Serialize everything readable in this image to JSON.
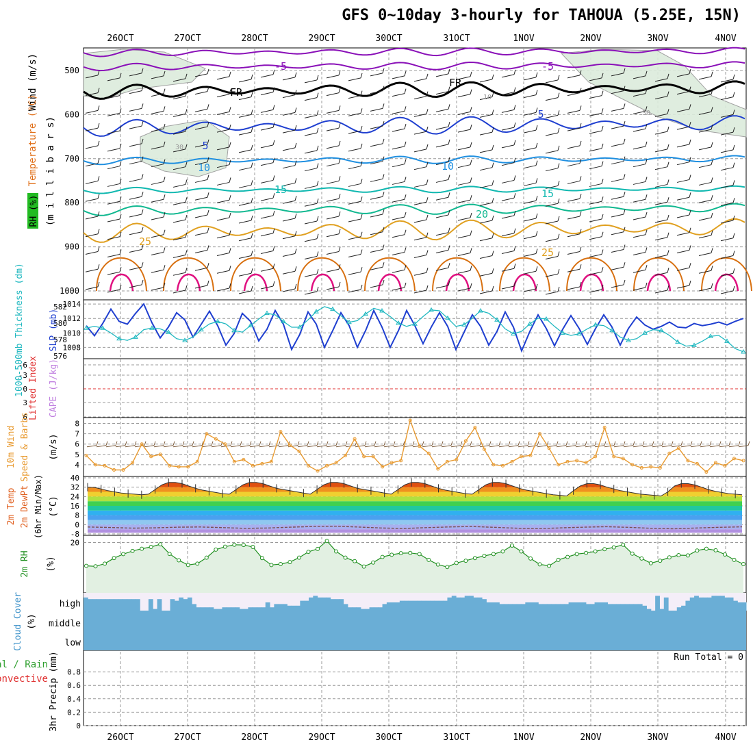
{
  "title": "GFS 0~10day 3-hourly for TAHOUA (5.25E, 15N)",
  "colors": {
    "grid": "#999999",
    "temp_purple": "#8a10b8",
    "temp_black": "#000000",
    "temp_blue": "#1f3fd0",
    "temp_lightblue": "#1f8fe0",
    "temp_cyan": "#10b8b0",
    "temp_green": "#10b890",
    "temp_gold": "#e0a020",
    "temp_orange": "#d87010",
    "temp_magenta": "#e01080",
    "rh_fill": "#dcecdc",
    "slp": "#1f3fd0",
    "thickness": "#20b8c0",
    "wind10m": "#e89a30",
    "rh2m_line": "#209020",
    "rh2m_fill": "#e2f0e2",
    "cloud": "#6aaed6",
    "cloud_bg": "#f4eef8"
  },
  "chart_data": [
    {
      "type": "line",
      "panel": "upper-air",
      "ylabel_rh": "RH (%)",
      "ylabel_temp": "Temperature (°C)",
      "ylabel_wind": "Wind (m/s)",
      "ylabel_axis": "(m i l l i b a r s)",
      "y_ticks": [
        500,
        600,
        700,
        800,
        900,
        1000
      ],
      "y_reversed": true,
      "x_ticks": [
        "26OCT",
        "27OCT",
        "28OCT",
        "29OCT",
        "30OCT",
        "31OCT",
        "1NOV",
        "2NOV",
        "3NOV",
        "4NOV"
      ],
      "contour_labels": [
        {
          "text": "-5",
          "color": "temp_purple"
        },
        {
          "text": "-5",
          "color": "temp_purple"
        },
        {
          "text": "FR",
          "color": "temp_black"
        },
        {
          "text": "FR",
          "color": "temp_black"
        },
        {
          "text": "5",
          "color": "temp_blue"
        },
        {
          "text": "5",
          "color": "temp_blue"
        },
        {
          "text": "10",
          "color": "temp_lightblue"
        },
        {
          "text": "10",
          "color": "temp_lightblue"
        },
        {
          "text": "15",
          "color": "temp_cyan"
        },
        {
          "text": "15",
          "color": "temp_cyan"
        },
        {
          "text": "20",
          "color": "temp_green"
        },
        {
          "text": "25",
          "color": "temp_gold"
        },
        {
          "text": "25",
          "color": "temp_gold"
        },
        {
          "text": "30",
          "color": "grid"
        },
        {
          "text": "30",
          "color": "grid"
        },
        {
          "text": "10",
          "color": "grid"
        }
      ],
      "isotherms": [
        {
          "color": "temp_purple",
          "level_mb": 492,
          "amp": 6
        },
        {
          "color": "temp_purple",
          "level_mb": 460,
          "amp": 6
        },
        {
          "color": "temp_black",
          "level_mb": 548,
          "amp": 12
        },
        {
          "color": "temp_blue",
          "level_mb": 630,
          "amp": 14
        },
        {
          "color": "temp_lightblue",
          "level_mb": 705,
          "amp": 6
        },
        {
          "color": "temp_cyan",
          "level_mb": 772,
          "amp": 5
        },
        {
          "color": "temp_green",
          "level_mb": 818,
          "amp": 8
        },
        {
          "color": "temp_gold",
          "level_mb": 868,
          "amp": 16
        }
      ]
    },
    {
      "type": "line",
      "panel": "slp-thickness",
      "ylabel_left": "1000-500mb Thickness (dm)",
      "ylabel_right": "SLP (mb)",
      "y_ticks_left": [
        576,
        578,
        580,
        582
      ],
      "y_ticks_right": [
        1008,
        1010,
        1012,
        1014
      ],
      "ylim_left": [
        576,
        582.5
      ],
      "ylim_right": [
        1006.8,
        1014.2
      ],
      "series": [
        {
          "name": "SLP (mb)",
          "color": "slp",
          "values": [
            1011.0,
            1009.6,
            1011.3,
            1013.3,
            1011.6,
            1011.2,
            1012.7,
            1014.0,
            1011.4,
            1009.3,
            1010.8,
            1012.8,
            1011.8,
            1009.4,
            1011.2,
            1013.0,
            1011.0,
            1008.3,
            1009.9,
            1012.7,
            1011.6,
            1008.9,
            1010.5,
            1013.1,
            1011.2,
            1007.7,
            1009.8,
            1012.9,
            1011.2,
            1008.0,
            1010.3,
            1012.8,
            1011.0,
            1008.0,
            1010.3,
            1013.1,
            1010.8,
            1008.0,
            1010.3,
            1013.1,
            1011.0,
            1008.5,
            1010.8,
            1012.8,
            1010.9,
            1007.7,
            1010.1,
            1012.5,
            1010.9,
            1008.3,
            1010.2,
            1012.9,
            1010.8,
            1007.5,
            1010.2,
            1012.5,
            1010.6,
            1008.2,
            1010.5,
            1012.4,
            1010.6,
            1008.4,
            1010.6,
            1012.5,
            1010.8,
            1008.3,
            1010.6,
            1012.2,
            1011.1,
            1010.5,
            1010.9,
            1011.5,
            1010.8,
            1010.7,
            1011.3,
            1011.0,
            1011.2,
            1011.5,
            1011.1,
            1011.6,
            1012.0
          ]
        },
        {
          "name": "Thickness (dm)",
          "color": "thickness",
          "values": [
            579.4,
            579.6,
            579.4,
            578.8,
            578.1,
            577.9,
            578.3,
            579.2,
            579.4,
            579.3,
            578.9,
            578.1,
            577.9,
            578.3,
            579.2,
            579.9,
            580.2,
            579.9,
            579.1,
            578.9,
            579.7,
            580.5,
            581.2,
            581.0,
            580.2,
            579.5,
            579.5,
            580.4,
            581.4,
            582.0,
            581.7,
            580.9,
            580.1,
            580.3,
            581.1,
            581.8,
            581.5,
            580.8,
            580.0,
            579.6,
            579.9,
            580.8,
            581.6,
            581.5,
            580.6,
            579.6,
            579.8,
            580.6,
            581.5,
            581.2,
            580.4,
            579.3,
            578.7,
            579.0,
            579.9,
            580.6,
            580.5,
            579.6,
            578.8,
            578.5,
            578.7,
            579.3,
            579.8,
            579.7,
            579.1,
            578.3,
            577.9,
            578.1,
            578.8,
            579.2,
            579.1,
            578.5,
            577.7,
            577.2,
            577.3,
            577.8,
            578.4,
            578.5,
            577.8,
            576.9,
            576.5
          ]
        }
      ]
    },
    {
      "type": "line",
      "panel": "cape-li",
      "ylabel_left": "CAPE (J/kg)",
      "ylabel_right": "Lifted Index",
      "y_ticks": [
        "-6",
        "-3",
        "0",
        "3",
        "6"
      ],
      "reference_line": 0
    },
    {
      "type": "line",
      "panel": "wind10m",
      "ylabel_left": "10m Wind",
      "ylabel_mid": "Speed & Barbs",
      "ylabel_units": "(m/s)",
      "y_ticks": [
        4,
        5,
        6,
        7,
        8
      ],
      "ylim": [
        3,
        8.3
      ],
      "series": [
        {
          "name": "10m Wind Speed",
          "color": "wind10m",
          "values": [
            4.9,
            4.0,
            3.9,
            3.5,
            3.5,
            4.2,
            6.0,
            4.8,
            5.0,
            3.9,
            3.8,
            3.8,
            4.3,
            7.0,
            6.5,
            6.0,
            4.3,
            4.5,
            3.9,
            4.1,
            4.3,
            7.2,
            5.9,
            5.3,
            3.9,
            3.4,
            3.9,
            4.2,
            4.9,
            6.5,
            4.8,
            4.8,
            3.8,
            4.2,
            4.4,
            8.3,
            5.8,
            5.1,
            3.6,
            4.3,
            4.5,
            6.3,
            7.6,
            5.5,
            4.0,
            3.9,
            4.3,
            4.8,
            4.9,
            7.0,
            5.6,
            4.0,
            4.3,
            4.4,
            4.2,
            4.8,
            7.6,
            4.8,
            4.6,
            4.0,
            3.7,
            3.8,
            3.7,
            5.1,
            5.6,
            4.4,
            4.1,
            3.3,
            4.2,
            3.9,
            4.6,
            4.4
          ]
        }
      ]
    },
    {
      "type": "area",
      "panel": "temp2m",
      "ylabel_left": "2m Temp",
      "ylabel_mid": "2m DewPt",
      "ylabel_sub": "(6hr Min/Max)",
      "ylabel_units": "(°C)",
      "y_ticks": [
        "-8",
        "0",
        "8",
        "16",
        "24",
        "32",
        "40"
      ],
      "ylim": [
        -8,
        40
      ],
      "series": [
        {
          "name": "2m Temp",
          "values": [
            32,
            31.8,
            30.5,
            29,
            28,
            27,
            26.5,
            26,
            25.5,
            26,
            30,
            34,
            36,
            36,
            35,
            33,
            31,
            29.5,
            28.5,
            27.5,
            26.5,
            26,
            30,
            34,
            36,
            36,
            35,
            33,
            31,
            30,
            29,
            28,
            27,
            26,
            30,
            34,
            36,
            36,
            35,
            33,
            31,
            30,
            29,
            28,
            27,
            26,
            30,
            34,
            36,
            36,
            35,
            33,
            31,
            29.5,
            28.5,
            27.5,
            26.5,
            26,
            30,
            34,
            36,
            36,
            35,
            33,
            31,
            29.5,
            28.5,
            27.5,
            26.5,
            25.5,
            25,
            24.5,
            29,
            33,
            35,
            35,
            34,
            32,
            30.5,
            29,
            28,
            27,
            26,
            25.5,
            25,
            24.5,
            28,
            33,
            35,
            35,
            34,
            32,
            30,
            28.5,
            27.5,
            26.5,
            26,
            25.5
          ]
        },
        {
          "name": "2m DewPt",
          "values": [
            -2,
            -2.5,
            -3,
            -2.8,
            -2.2,
            -2,
            -2.6,
            -3.2,
            -2.9,
            -2.2,
            -1.6,
            -1.4,
            -2.1,
            -2.9,
            -3.3,
            -2.6,
            -2,
            -1.6,
            -2.3,
            -3.1,
            -3.5,
            -2.8,
            -2.2,
            -1.8,
            -2.4,
            -3.2,
            -3.6,
            -2.9,
            -2.3,
            -1.9
          ]
        }
      ]
    },
    {
      "type": "area",
      "panel": "rh2m",
      "ylabel_left": "2m RH",
      "ylabel_units": "(%)",
      "y_ticks": [
        "20"
      ],
      "ylim": [
        -2,
        22
      ],
      "series": [
        {
          "name": "2m RH",
          "values": [
            9.5,
            9.3,
            10.5,
            13.0,
            14.8,
            16.2,
            17.2,
            18.0,
            19.2,
            14.9,
            12.0,
            9.9,
            10.5,
            13.2,
            16.8,
            18.1,
            19.0,
            18.9,
            18.0,
            13.0,
            9.9,
            10.3,
            11.2,
            13.2,
            15.8,
            17.1,
            20.7,
            16.0,
            13.2,
            11.6,
            9.2,
            11.0,
            13.5,
            14.5,
            15.2,
            15.3,
            14.8,
            12.2,
            10.1,
            9.0,
            10.8,
            11.8,
            13.0,
            14.0,
            14.8,
            16.0,
            18.6,
            16.0,
            12.8,
            10.2,
            9.5,
            12.2,
            13.5,
            14.8,
            15.3,
            16.0,
            17.0,
            17.8,
            19.0,
            15.0,
            12.8,
            10.7,
            11.8,
            13.3,
            14.3,
            14.2,
            16.4,
            17.2,
            16.5,
            14.6,
            12.2,
            10.3
          ]
        }
      ]
    },
    {
      "type": "area",
      "panel": "cloud",
      "ylabel_left": "Cloud Cover",
      "ylabel_units": "(%)",
      "levels": [
        "high",
        "middle",
        "low"
      ],
      "series": [
        {
          "name": "high",
          "values": [
            80,
            70,
            70,
            70,
            70,
            70,
            70,
            70,
            70,
            70,
            70,
            70,
            70,
            0,
            0,
            70,
            10,
            70,
            0,
            0,
            70,
            60,
            80,
            70,
            80,
            40,
            20,
            20,
            20,
            20,
            10,
            10,
            20,
            20,
            20,
            20,
            10,
            10,
            20,
            20,
            20,
            20,
            50,
            20,
            40,
            40,
            40,
            30,
            30,
            30,
            60,
            60,
            80,
            90,
            80,
            80,
            80,
            70,
            70,
            70,
            40,
            20,
            20,
            20,
            10,
            10,
            20,
            20,
            20,
            40,
            50,
            50,
            50,
            60,
            60,
            60,
            60,
            60,
            60,
            60,
            60,
            60,
            60,
            60,
            80,
            90,
            80,
            80,
            90,
            90,
            80,
            80,
            70,
            50,
            50,
            50,
            40,
            40,
            40,
            40,
            40,
            40,
            50,
            50,
            50,
            40,
            40,
            40,
            40,
            40,
            40,
            40,
            50,
            50,
            50,
            50,
            40,
            40,
            50,
            50,
            50,
            40,
            40,
            40,
            40,
            40,
            40,
            40,
            40,
            30,
            10,
            0,
            90,
            10,
            80,
            0,
            0,
            20,
            30,
            60,
            80,
            90,
            80,
            80,
            80,
            90,
            90,
            90,
            80,
            80,
            60,
            50,
            50
          ]
        }
      ]
    },
    {
      "type": "bar",
      "panel": "precip",
      "ylabel_left": "Total / Rain",
      "ylabel_left2": "Convective",
      "ylabel_units": "3hr Precip (mm)",
      "y_ticks": [
        "0",
        "0.2",
        "0.4",
        "0.6",
        "0.8"
      ],
      "ylim": [
        0,
        1.0
      ],
      "annotation": "Run Total = 0",
      "values": []
    }
  ]
}
